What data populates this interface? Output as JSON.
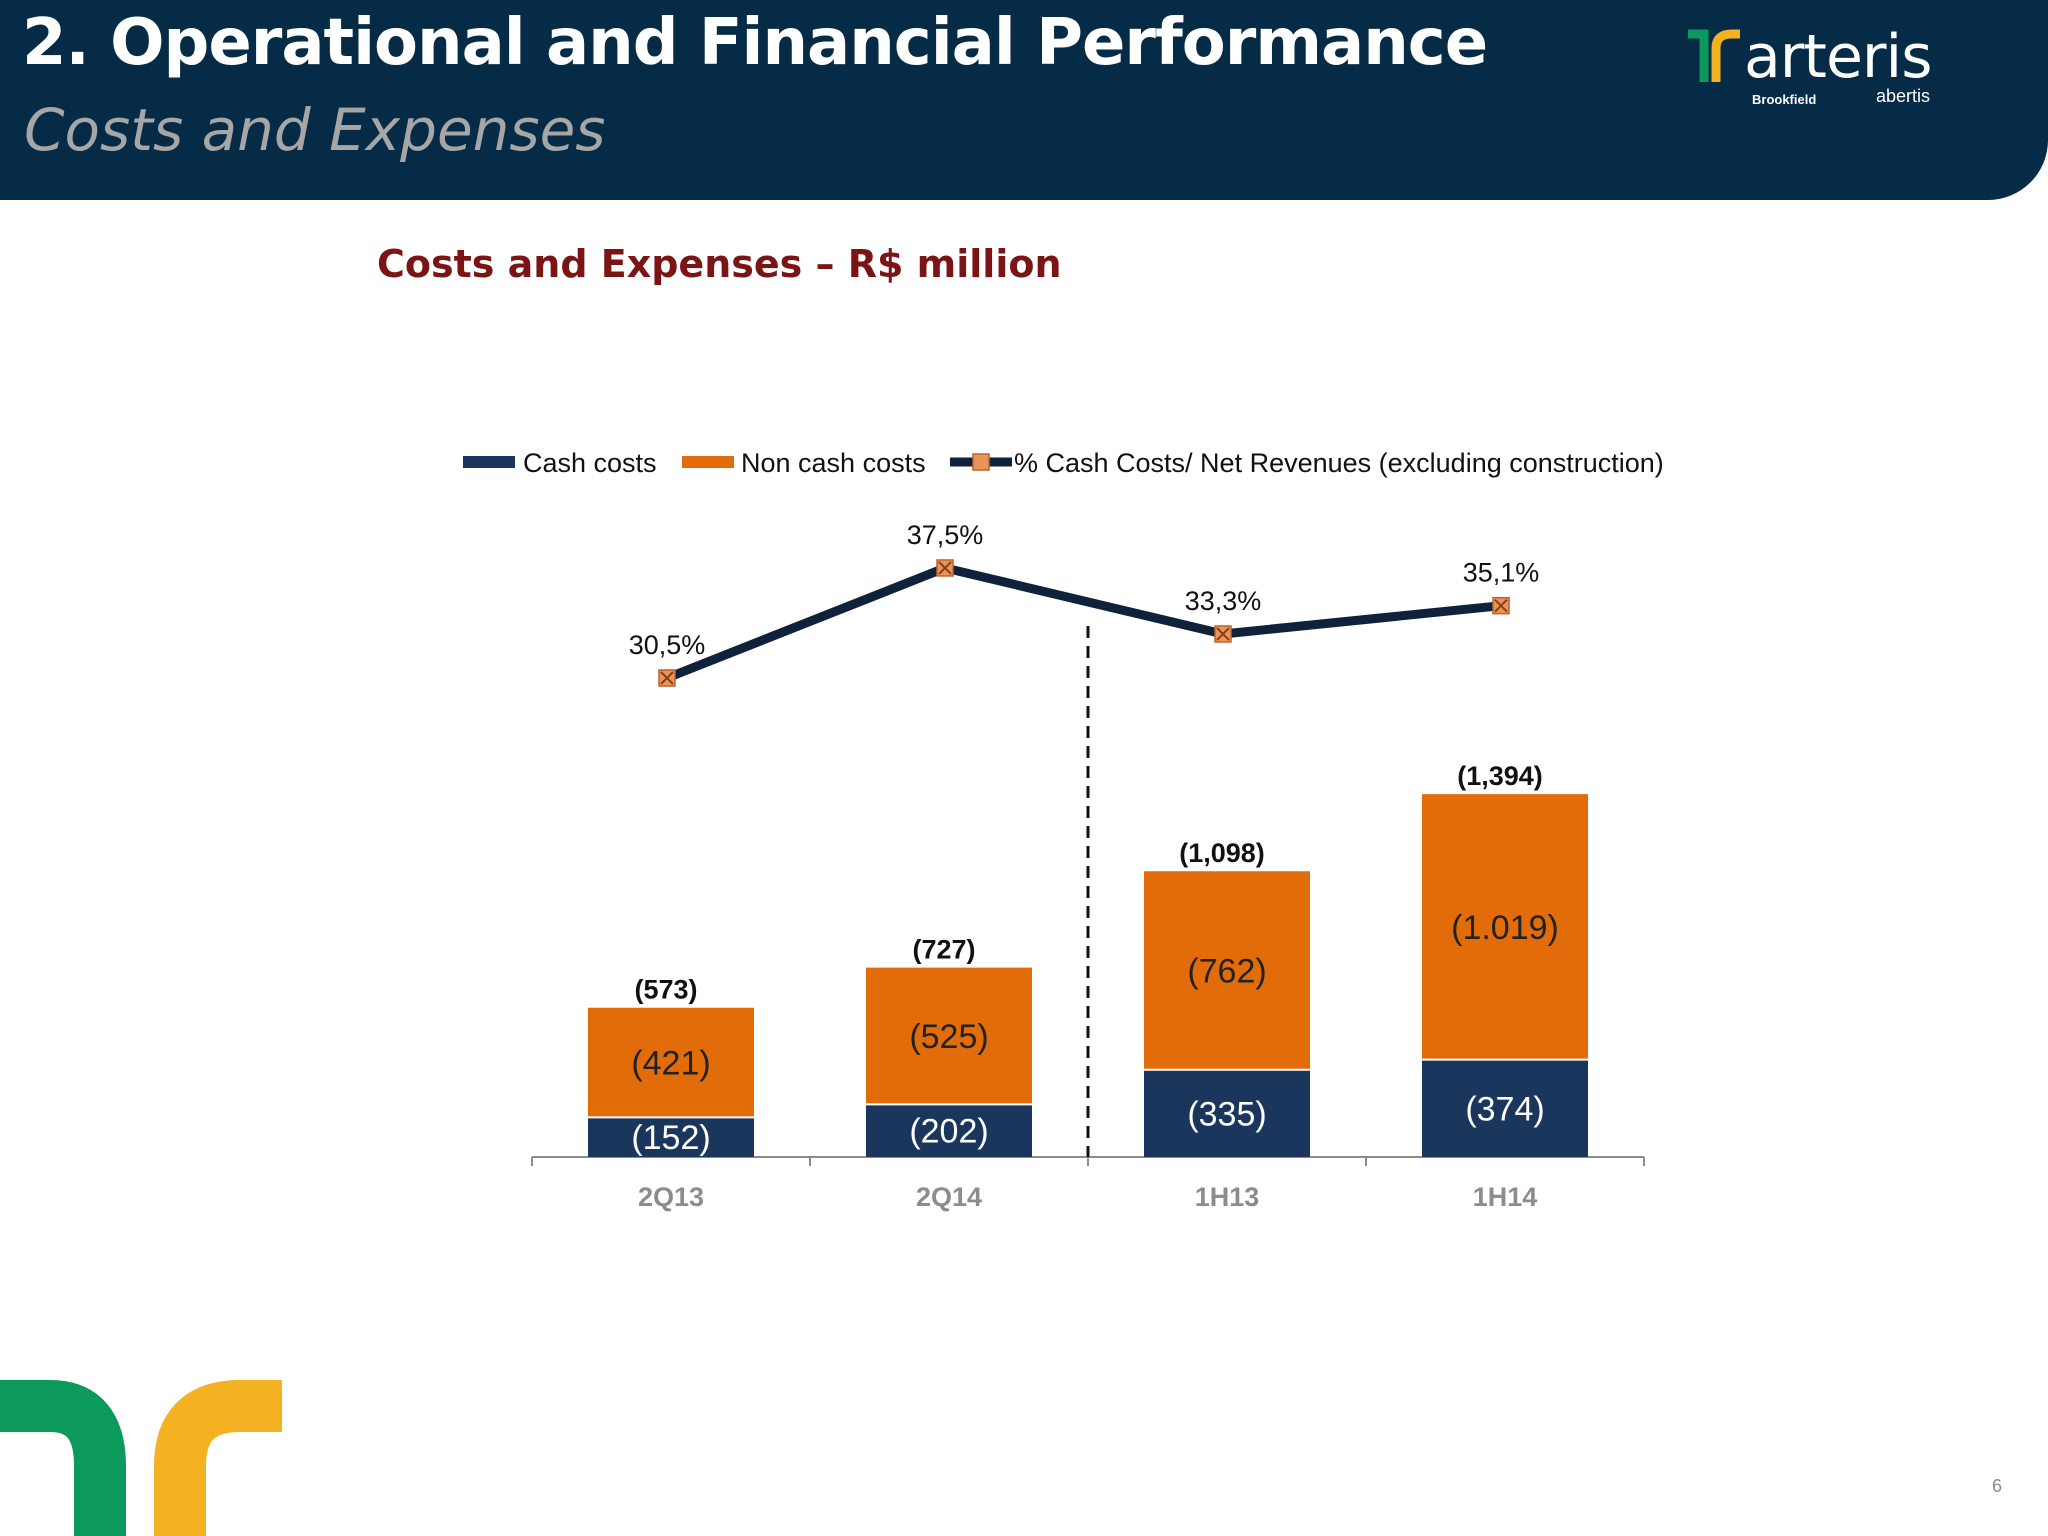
{
  "header": {
    "title": "2. Operational and Financial Performance",
    "subtitle": "Costs and Expenses"
  },
  "logo": {
    "word": "arteris",
    "partner1": "Brookfield",
    "partner2": "abertis"
  },
  "page_number": "6",
  "colors": {
    "header_bg": "#052b47",
    "cash": "#1b365d",
    "noncash": "#e36c0a",
    "line": "#10223b",
    "title_red": "#7b1414"
  },
  "chart_data": {
    "type": "bar",
    "title": "Costs and Expenses – R$ million",
    "categories": [
      "2Q13",
      "2Q14",
      "1H13",
      "1H14"
    ],
    "series": [
      {
        "name": "Cash costs",
        "values": [
          -152,
          -202,
          -335,
          -374
        ],
        "labels": [
          "(152)",
          "(202)",
          "(335)",
          "(374)"
        ]
      },
      {
        "name": "Non cash costs",
        "values": [
          -421,
          -525,
          -762,
          -1019
        ],
        "labels": [
          "(421)",
          "(525)",
          "(762)",
          "(1.019)"
        ]
      },
      {
        "name": "% Cash Costs/ Net Revenues (excluding construction)",
        "type": "line",
        "values": [
          30.5,
          37.5,
          33.3,
          35.1
        ],
        "labels": [
          "30,5%",
          "37,5%",
          "33,3%",
          "35,1%"
        ]
      }
    ],
    "totals": {
      "values": [
        -573,
        -727,
        -1098,
        -1394
      ],
      "labels": [
        "(573)",
        "(727)",
        "(1,098)",
        "(1,394)"
      ]
    },
    "legend": "top",
    "grid": false
  }
}
